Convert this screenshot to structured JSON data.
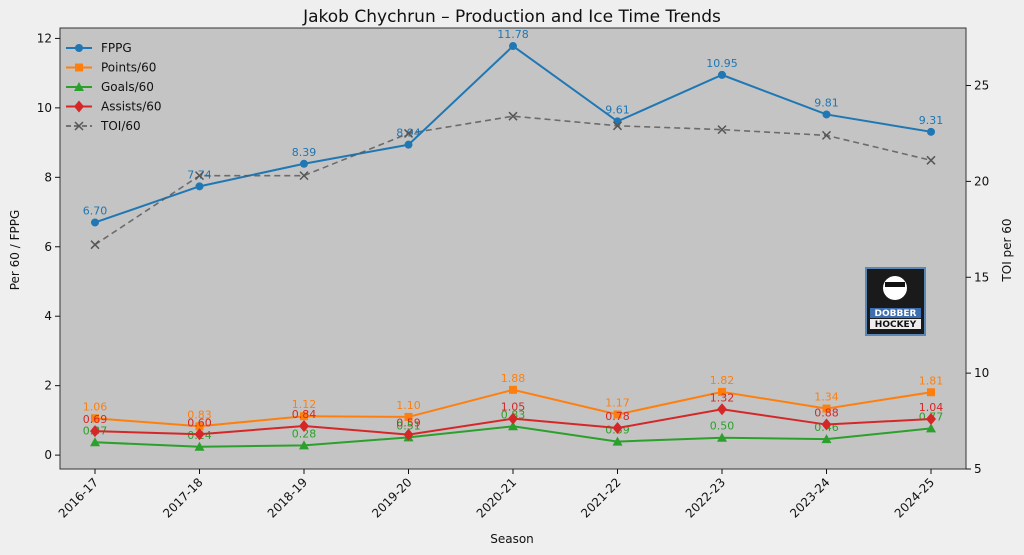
{
  "chart_data": {
    "type": "line",
    "title": "Jakob Chychrun – Production and Ice Time Trends",
    "xlabel": "Season",
    "ylabel_left": "Per 60 / FPPG",
    "ylabel_right": "TOI per 60",
    "categories": [
      "2016-17",
      "2017-18",
      "2018-19",
      "2019-20",
      "2020-21",
      "2021-22",
      "2022-23",
      "2023-24",
      "2024-25"
    ],
    "ylim_left": [
      -0.4,
      12.3
    ],
    "yticks_left": [
      "0",
      "2",
      "4",
      "6",
      "8",
      "10",
      "12"
    ],
    "ylim_right": [
      5,
      28
    ],
    "yticks_right": [
      "5",
      "10",
      "15",
      "20",
      "25"
    ],
    "grid": false,
    "legend_position": "upper-left",
    "series": [
      {
        "name": "FPPG",
        "axis": "left",
        "color": "#1f77b4",
        "marker": "circle",
        "dashed": false,
        "values": [
          6.7,
          7.74,
          8.39,
          8.94,
          11.78,
          9.61,
          10.95,
          9.81,
          9.31
        ],
        "labels": [
          "6.70",
          "7.74",
          "8.39",
          "8.94",
          "11.78",
          "9.61",
          "10.95",
          "9.81",
          "9.31"
        ]
      },
      {
        "name": "Points/60",
        "axis": "left",
        "color": "#ff7f0e",
        "marker": "square",
        "dashed": false,
        "values": [
          1.06,
          0.83,
          1.12,
          1.1,
          1.88,
          1.17,
          1.82,
          1.34,
          1.81
        ],
        "labels": [
          "1.06",
          "0.83",
          "1.12",
          "1.10",
          "1.88",
          "1.17",
          "1.82",
          "1.34",
          "1.81"
        ]
      },
      {
        "name": "Goals/60",
        "axis": "left",
        "color": "#2ca02c",
        "marker": "triangle",
        "dashed": false,
        "values": [
          0.37,
          0.24,
          0.28,
          0.51,
          0.83,
          0.39,
          0.5,
          0.46,
          0.77
        ],
        "labels": [
          "0.37",
          "0.24",
          "0.28",
          "0.51",
          "0.83",
          "0.39",
          "0.50",
          "0.46",
          "0.77"
        ]
      },
      {
        "name": "Assists/60",
        "axis": "left",
        "color": "#d62728",
        "marker": "diamond",
        "dashed": false,
        "values": [
          0.69,
          0.6,
          0.84,
          0.59,
          1.05,
          0.78,
          1.32,
          0.88,
          1.04
        ],
        "labels": [
          "0.69",
          "0.60",
          "0.84",
          "0.59",
          "1.05",
          "0.78",
          "1.32",
          "0.88",
          "1.04"
        ]
      },
      {
        "name": "TOI/60",
        "axis": "right",
        "color": "#555555",
        "marker": "x",
        "dashed": true,
        "values": [
          16.7,
          20.3,
          20.3,
          22.5,
          23.4,
          22.9,
          22.7,
          22.4,
          21.1
        ],
        "labels": []
      }
    ]
  },
  "logo": {
    "text_line1": "DOBBER",
    "text_line2": "HOCKEY"
  }
}
